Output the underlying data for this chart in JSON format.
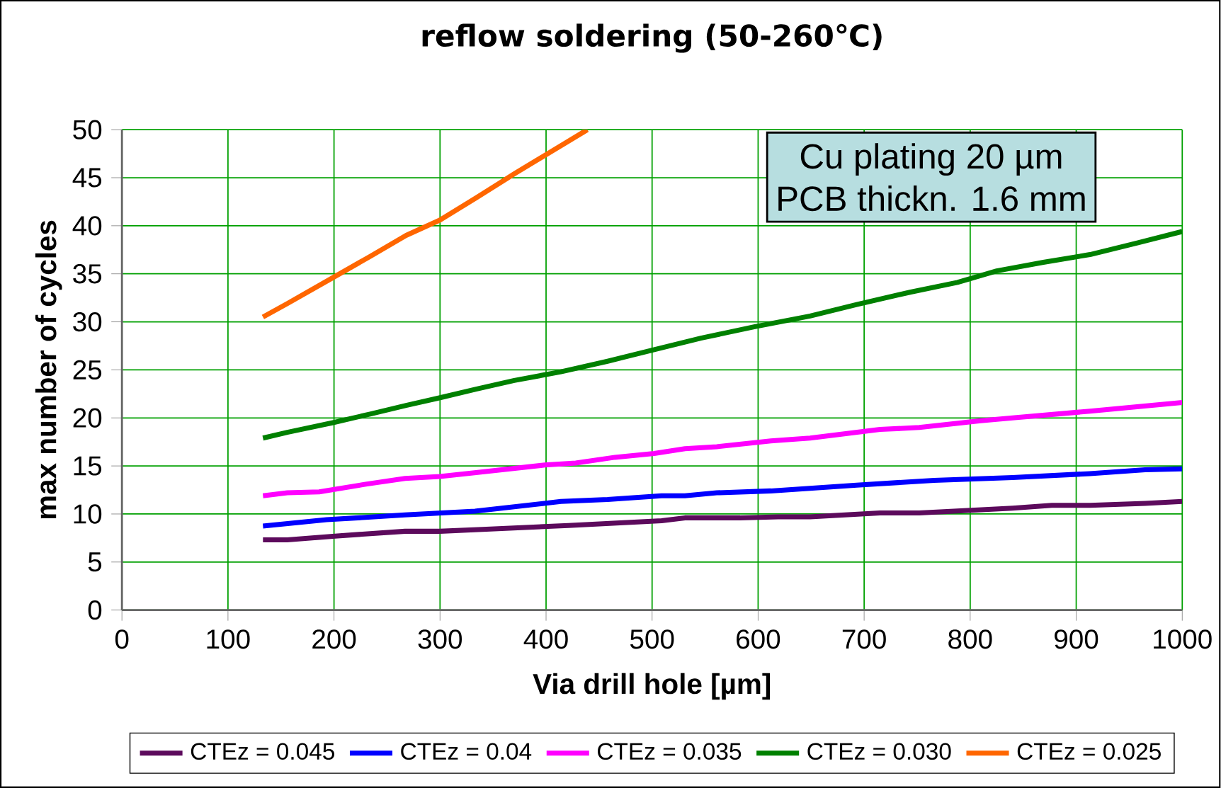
{
  "chart_data": {
    "type": "line",
    "title": "reflow soldering (50-260℃)",
    "xlabel": "Via drill hole [µm]",
    "ylabel": "max number of cycles",
    "xlim": [
      0,
      1000
    ],
    "xticks": [
      0,
      100,
      200,
      300,
      400,
      500,
      600,
      700,
      800,
      900,
      1000
    ],
    "ylim": [
      0,
      50
    ],
    "yticks": [
      0,
      5,
      10,
      15,
      20,
      25,
      30,
      35,
      40,
      45,
      50
    ],
    "grid": true,
    "legend": "bottom",
    "marker": "none",
    "line_style": "solid",
    "annotations": [
      "Cu plating 20 µm",
      "PCB thickn. 1.6 mm"
    ],
    "series": [
      {
        "name": "CTEz = 0.045",
        "color": "#5c0a5c",
        "x": [
          133,
          156,
          201,
          267,
          300,
          340,
          421,
          509,
          531,
          583,
          619,
          649,
          715,
          752,
          840,
          877,
          913,
          965,
          1000
        ],
        "values": [
          7.3,
          7.3,
          7.7,
          8.2,
          8.2,
          8.4,
          8.8,
          9.3,
          9.6,
          9.6,
          9.7,
          9.7,
          10.1,
          10.1,
          10.6,
          10.9,
          10.9,
          11.1,
          11.3
        ]
      },
      {
        "name": "CTEz = 0.04",
        "color": "#0000ff",
        "x": [
          133,
          193,
          267,
          333,
          414,
          458,
          509,
          531,
          561,
          612,
          693,
          766,
          840,
          913,
          965,
          1000
        ],
        "values": [
          8.75,
          9.4,
          9.9,
          10.3,
          11.3,
          11.5,
          11.9,
          11.9,
          12.2,
          12.4,
          13.0,
          13.5,
          13.8,
          14.2,
          14.6,
          14.7
        ]
      },
      {
        "name": "CTEz = 0.035",
        "color": "#ff00ff",
        "x": [
          133,
          156,
          186,
          230,
          267,
          300,
          334,
          399,
          428,
          465,
          502,
          531,
          561,
          612,
          649,
          715,
          752,
          810,
          840,
          913,
          1000
        ],
        "values": [
          11.9,
          12.2,
          12.3,
          13.1,
          13.7,
          13.9,
          14.3,
          15.1,
          15.3,
          15.9,
          16.3,
          16.8,
          17.0,
          17.6,
          17.9,
          18.8,
          19.0,
          19.7,
          20.0,
          20.7,
          21.6
        ]
      },
      {
        "name": "CTEz = 0.030",
        "color": "#008000",
        "x": [
          133,
          156,
          199,
          234,
          268,
          300,
          334,
          370,
          414,
          458,
          502,
          546,
          597,
          649,
          693,
          744,
          788,
          825,
          869,
          913,
          957,
          1000
        ],
        "values": [
          17.9,
          18.5,
          19.5,
          20.4,
          21.3,
          22.1,
          23.0,
          23.9,
          24.8,
          25.9,
          27.1,
          28.3,
          29.5,
          30.6,
          31.8,
          33.1,
          34.1,
          35.3,
          36.2,
          37.0,
          38.2,
          39.4
        ]
      },
      {
        "name": "CTEz = 0.025",
        "color": "#ff6600",
        "x": [
          133,
          156,
          199,
          234,
          268,
          300,
          334,
          370,
          403,
          439
        ],
        "values": [
          30.5,
          31.9,
          34.6,
          36.8,
          39.0,
          40.6,
          42.9,
          45.4,
          47.6,
          50.0
        ]
      }
    ]
  }
}
